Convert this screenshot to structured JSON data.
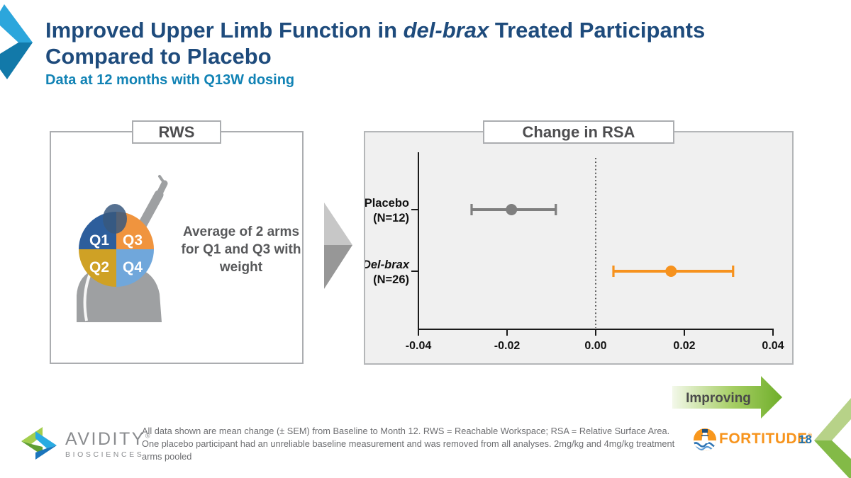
{
  "header": {
    "title_part1": "Improved Upper Limb Function in",
    "title_italic": "del-brax",
    "title_part2": "Treated Participants",
    "title_line2": "Compared to Placebo",
    "subtitle": "Data at 12 months with Q13W dosing"
  },
  "rws_panel": {
    "tab": "RWS",
    "caption": "Average of 2 arms for Q1 and Q3 with weight",
    "quadrants": [
      {
        "label": "Q1",
        "color": "#2D5E9C"
      },
      {
        "label": "Q3",
        "color": "#F0943E"
      },
      {
        "label": "Q2",
        "color": "#CFA125"
      },
      {
        "label": "Q4",
        "color": "#70A7DB"
      }
    ]
  },
  "chart_data": {
    "type": "scatter",
    "title": "Change in RSA",
    "xlabel": "",
    "xlim": [
      -0.04,
      0.04
    ],
    "xticks": [
      "-0.04",
      "-0.02",
      "0.00",
      "0.02",
      "0.04"
    ],
    "zero_line": 0,
    "background": "#F0F0F0",
    "error_bar_type": "SEM",
    "series": [
      {
        "name": "Placebo",
        "n_label": "(N=12)",
        "mean": -0.019,
        "sem_low": -0.028,
        "sem_high": -0.009,
        "color": "#7F7F7F",
        "italic_name": false
      },
      {
        "name": "Del-brax",
        "n_label": "(N=26)",
        "mean": 0.017,
        "sem_low": 0.004,
        "sem_high": 0.031,
        "color": "#F6921E",
        "italic_name": true
      }
    ]
  },
  "improving": {
    "label": "Improving"
  },
  "footer": {
    "footnote": "All data shown are mean change (± SEM) from Baseline to Month 12. RWS = Reachable Workspace; RSA = Relative Surface Area. One placebo participant had an unreliable baseline measurement and was removed from all analyses. 2mg/kg and 4mg/kg treatment arms pooled",
    "logo": {
      "name": "AVIDITY",
      "sub": "BIOSCIENCES",
      "reg": "®"
    },
    "fortitude": {
      "name": "FORTITUDE",
      "reg": "®"
    },
    "page_number": "18"
  },
  "colors": {
    "title_navy": "#1E4B7C",
    "subtitle_blue": "#1283B5",
    "placebo_gray": "#7F7F7F",
    "delbrax_orange": "#F6921E",
    "improving_green": "#72B02C",
    "fortitude_orange": "#F7941D"
  }
}
